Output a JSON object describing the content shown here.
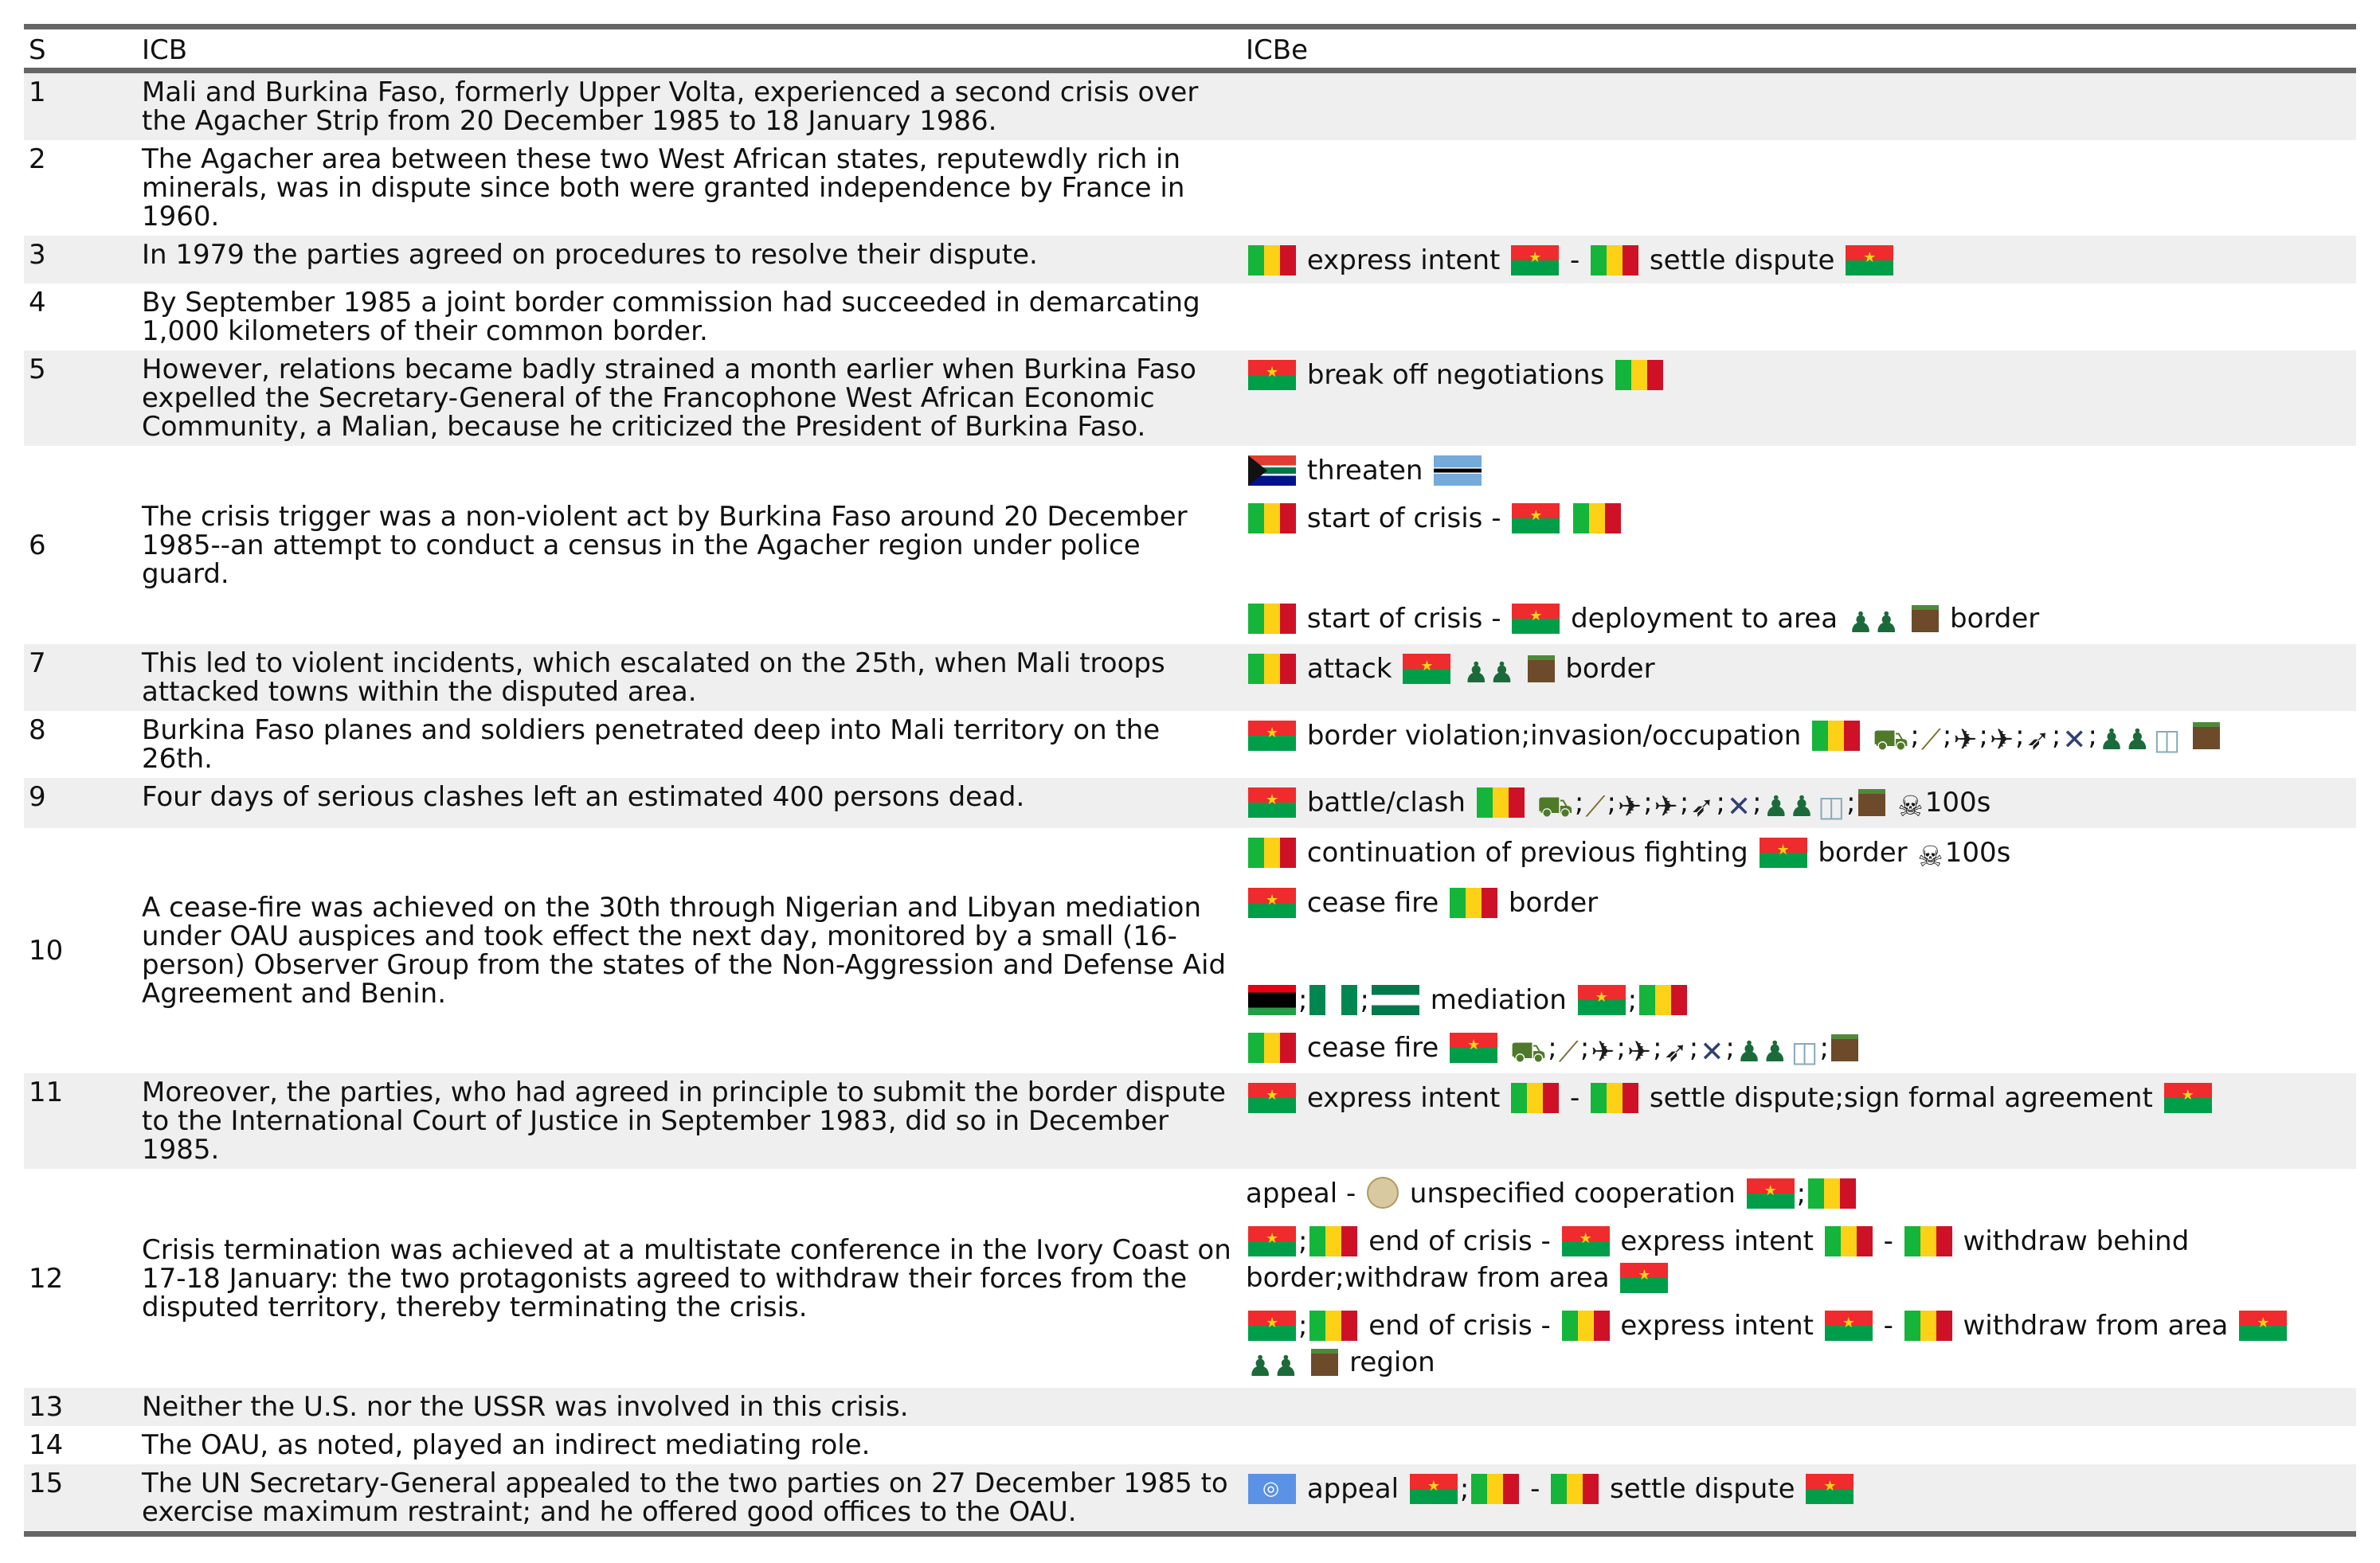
{
  "headers": [
    "S",
    "ICB",
    "ICBe"
  ],
  "rows": [
    {
      "s": "1",
      "icb": "Mali and Burkina Faso, formerly Upper Volta, experienced a second crisis over the Agacher Strip from 20 December 1985 to 18 January 1986."
    },
    {
      "s": "2",
      "icb": "The Agacher area between these two West African states, reputewdly rich in minerals, was in dispute since both were granted independence by France in 1960."
    },
    {
      "s": "3",
      "icb": "In 1979 the parties agreed on procedures to resolve their dispute.",
      "e1": {
        "a": "express intent",
        "sep": "-",
        "b": "settle dispute"
      }
    },
    {
      "s": "4",
      "icb": "By September 1985 a joint border commission had succeeded in demarcating 1,000 kilometers of their common border."
    },
    {
      "s": "5",
      "icb": "However, relations became badly strained a month earlier when Burkina Faso expelled the Secretary-General of the Francophone West African Economic Community, a Malian, because he criticized the President of Burkina Faso.",
      "e1": {
        "a": "break off negotiations"
      }
    },
    {
      "s": "6",
      "icb": "The crisis trigger was a non-violent act by Burkina Faso around 20 December 1985--an attempt to conduct a census in the Agacher region under police guard.",
      "e1": {
        "a": "threaten"
      },
      "e2": {
        "a": "start of crisis -"
      },
      "e3": {
        "a": "start of crisis -",
        "b": "deployment to area",
        "c": "border"
      }
    },
    {
      "s": "7",
      "icb": "This led to violent incidents, which escalated on the 25th, when Mali troops attacked towns within the disputed area.",
      "e1": {
        "a": "attack",
        "c": "border"
      }
    },
    {
      "s": "8",
      "icb": "Burkina Faso planes and soldiers penetrated deep into Mali territory on the 26th.",
      "e1": {
        "a": "border violation;invasion/occupation"
      }
    },
    {
      "s": "9",
      "icb": "Four days of serious clashes left an estimated 400 persons dead.",
      "e1": {
        "a": "battle/clash",
        "d": "100s"
      }
    },
    {
      "s": "10",
      "icb": "A cease-fire was achieved on the 30th through Nigerian and Libyan mediation under OAU auspices and took effect the next day, monitored by a small (16-person) Observer Group from the states of the Non-Aggression and Defense Aid Agreement and Benin.",
      "e1": {
        "a": "continuation of previous fighting",
        "c": "border",
        "d": "100s"
      },
      "e2": {
        "a": "cease fire",
        "c": "border"
      },
      "e3": {
        "a": "mediation"
      },
      "e4": {
        "a": "cease fire"
      }
    },
    {
      "s": "11",
      "icb": "Moreover, the parties, who had agreed in principle to submit the border dispute to the International Court of Justice in September 1983, did so in December 1985.",
      "e1": {
        "a": "express intent",
        "sep": "-",
        "b": "settle dispute;sign formal agreement"
      }
    },
    {
      "s": "12",
      "icb": "Crisis termination was achieved at a multistate conference in the Ivory Coast on 17-18 January: the two protagonists agreed to withdraw their forces from the disputed territory, thereby terminating the crisis.",
      "e1": {
        "a": "appeal -",
        "b": "unspecified cooperation"
      },
      "e2": {
        "a": "end of crisis -",
        "b": "express intent",
        "sep": "-",
        "c": "withdraw behind border;withdraw from area"
      },
      "e3": {
        "a": "end of crisis -",
        "b": "express intent",
        "sep": "-",
        "c": "withdraw from area",
        "d": "region"
      }
    },
    {
      "s": "13",
      "icb": "Neither the U.S. nor the USSR was involved in this crisis."
    },
    {
      "s": "14",
      "icb": "The OAU, as noted, played an indirect mediating role."
    },
    {
      "s": "15",
      "icb": "The UN Secretary-General appealed to the two parties on 27 December 1985 to exercise maximum restraint; and he offered good offices to the OAU.",
      "e1": {
        "a": "appeal",
        "sep": "-",
        "b": "settle dispute"
      }
    }
  ]
}
